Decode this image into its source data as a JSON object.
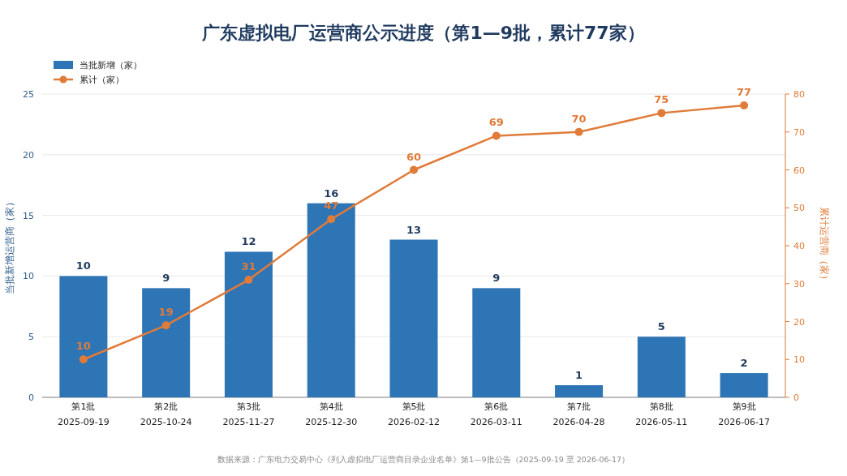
{
  "chart_data": {
    "type": "bar",
    "title": "广东虚拟电厂运营商公示进度（第1—9批，累计77家）",
    "categories": [
      "第1批\n2025-09-19",
      "第2批\n2025-10-24",
      "第3批\n2025-11-27",
      "第4批\n2025-12-30",
      "第5批\n2026-02-12",
      "第6批\n2026-03-11",
      "第7批\n2026-04-28",
      "第8批\n2026-05-11",
      "第9批\n2026-06-17"
    ],
    "series": [
      {
        "name": "当批新增（家）",
        "color": "#2e75b6",
        "values": [
          10,
          9,
          12,
          16,
          13,
          9,
          1,
          5,
          2
        ]
      },
      {
        "name": "累计（家）",
        "type": "line",
        "axis": "y2",
        "color": "#e07b39",
        "marker": "circle",
        "values": [
          10,
          19,
          31,
          47,
          60,
          69,
          70,
          75,
          77
        ]
      }
    ],
    "ylabel": "当批新增运营商（家）",
    "y2label": "累计运营商（家）",
    "ylim": [
      0,
      25
    ],
    "yticks": [
      0,
      5,
      10,
      15,
      20,
      25
    ],
    "y2lim": [
      0,
      80
    ],
    "y2ticks": [
      0,
      10,
      20,
      30,
      40,
      50,
      60,
      70,
      80
    ],
    "grid": "y",
    "legend": "top left",
    "data_labels": true,
    "annotations": [
      "数据来源：广东电力交易中心《列入虚拟电厂运营商目录企业名单》第1—9批公告（2025-09-19 至 2026-06-17）"
    ]
  }
}
